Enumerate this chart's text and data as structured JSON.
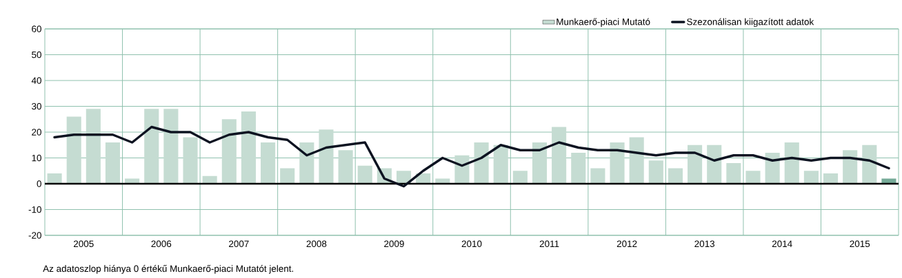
{
  "chart_data": {
    "type": "bar",
    "x": [
      2005.125,
      2005.375,
      2005.625,
      2005.875,
      2006.125,
      2006.375,
      2006.625,
      2006.875,
      2007.125,
      2007.375,
      2007.625,
      2007.875,
      2008.125,
      2008.375,
      2008.625,
      2008.875,
      2009.125,
      2009.375,
      2009.625,
      2009.875,
      2010.125,
      2010.375,
      2010.625,
      2010.875,
      2011.125,
      2011.375,
      2011.625,
      2011.875,
      2012.125,
      2012.375,
      2012.625,
      2012.875,
      2013.125,
      2013.375,
      2013.625,
      2013.875,
      2014.125,
      2014.375,
      2014.625,
      2014.875,
      2015.125,
      2015.375,
      2015.625,
      2015.875
    ],
    "series": [
      {
        "name": "Munkaerő-piaci Mutató",
        "colors": [
          "#c5dcd2",
          "#c5dcd2",
          "#c5dcd2",
          "#c5dcd2",
          "#c5dcd2",
          "#c5dcd2",
          "#c5dcd2",
          "#c5dcd2",
          "#c5dcd2",
          "#c5dcd2",
          "#c5dcd2",
          "#c5dcd2",
          "#c5dcd2",
          "#c5dcd2",
          "#c5dcd2",
          "#c5dcd2",
          "#c5dcd2",
          "#c5dcd2",
          "#c5dcd2",
          "#c5dcd2",
          "#c5dcd2",
          "#c5dcd2",
          "#c5dcd2",
          "#c5dcd2",
          "#c5dcd2",
          "#c5dcd2",
          "#c5dcd2",
          "#c5dcd2",
          "#c5dcd2",
          "#c5dcd2",
          "#c5dcd2",
          "#c5dcd2",
          "#c5dcd2",
          "#c5dcd2",
          "#c5dcd2",
          "#c5dcd2",
          "#c5dcd2",
          "#c5dcd2",
          "#c5dcd2",
          "#c5dcd2",
          "#c5dcd2",
          "#c5dcd2",
          "#c5dcd2",
          "#76ab98"
        ],
        "values": [
          4,
          26,
          29,
          16,
          2,
          29,
          29,
          18,
          3,
          25,
          28,
          16,
          6,
          16,
          21,
          13,
          7,
          6,
          5,
          4,
          2,
          11,
          16,
          15,
          5,
          16,
          22,
          12,
          6,
          16,
          18,
          9,
          6,
          15,
          15,
          8,
          5,
          12,
          16,
          5,
          4,
          13,
          15,
          2
        ]
      },
      {
        "name": "Szezonálisan kiigazított adatok",
        "type": "line",
        "color": "#0d1321",
        "values": [
          18,
          19,
          19,
          19,
          16,
          22,
          20,
          20,
          16,
          19,
          20,
          18,
          17,
          11,
          14,
          15,
          16,
          2,
          -1,
          5,
          10,
          7,
          10,
          15,
          13,
          13,
          16,
          14,
          13,
          13,
          12,
          11,
          12,
          12,
          9,
          11,
          11,
          9,
          10,
          9,
          10,
          10,
          9,
          6
        ]
      }
    ],
    "xlim": [
      2005,
      2016
    ],
    "xticks": [
      {
        "value": 2006,
        "label": null
      },
      {
        "value": 2007,
        "label": null
      },
      {
        "value": 2008,
        "label": null
      },
      {
        "value": 2009,
        "label": null
      },
      {
        "value": 2010,
        "label": null
      },
      {
        "value": 2011,
        "label": null
      },
      {
        "value": 2012,
        "label": null
      },
      {
        "value": 2013,
        "label": null
      },
      {
        "value": 2014,
        "label": null
      },
      {
        "value": 2015,
        "label": null
      },
      {
        "value": 2005.5,
        "label": "2005"
      },
      {
        "value": 2006.5,
        "label": "2006"
      },
      {
        "value": 2007.5,
        "label": "2007"
      },
      {
        "value": 2008.5,
        "label": "2008"
      },
      {
        "value": 2009.5,
        "label": "2009"
      },
      {
        "value": 2010.5,
        "label": "2010"
      },
      {
        "value": 2011.5,
        "label": "2011"
      },
      {
        "value": 2012.5,
        "label": "2012"
      },
      {
        "value": 2013.5,
        "label": "2013"
      },
      {
        "value": 2014.5,
        "label": "2014"
      },
      {
        "value": 2015.5,
        "label": "2015"
      }
    ],
    "ylim": [
      -20,
      60
    ],
    "yticks": [
      -20,
      -10,
      0,
      10,
      20,
      30,
      40,
      50,
      60
    ],
    "grid": true,
    "legend": "top right",
    "ref_lines": [
      {
        "axis": "y",
        "value": 0,
        "color": "#000000"
      }
    ],
    "annotations": [
      "Az adatoszlop hiánya 0 értékű Munkaerő-piaci Mutatót jelent."
    ]
  }
}
